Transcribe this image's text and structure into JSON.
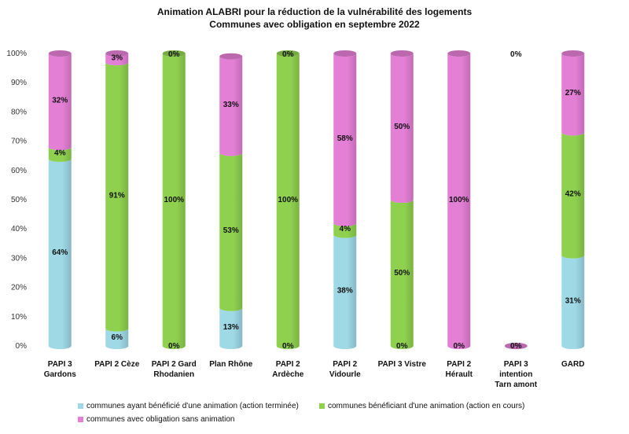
{
  "chart_data": {
    "type": "bar",
    "stacked": true,
    "percent": true,
    "title": "Animation ALABRI pour la réduction de la vulnérabilité des logements",
    "subtitle": "Communes avec obligation en septembre 2022",
    "categories": [
      [
        "PAPI 3",
        "Gardons"
      ],
      [
        "PAPI 2 Cèze"
      ],
      [
        "PAPI 2 Gard",
        "Rhodanien"
      ],
      [
        "Plan Rhône"
      ],
      [
        "PAPI 2",
        "Ardèche"
      ],
      [
        "PAPI 2",
        "Vidourle"
      ],
      [
        "PAPI 3 Vistre"
      ],
      [
        "PAPI 2",
        "Hérault"
      ],
      [
        "PAPI 3",
        "intention",
        "Tarn amont"
      ],
      [
        "GARD"
      ]
    ],
    "yticks": [
      "0%",
      "10%",
      "20%",
      "30%",
      "40%",
      "50%",
      "60%",
      "70%",
      "80%",
      "90%",
      "100%"
    ],
    "ylim": [
      0,
      100
    ],
    "series": [
      {
        "name": "communes ayant bénéficié d'une animation (action terminée)",
        "color": "#9fd9e6",
        "values": [
          64,
          6,
          0,
          13,
          0,
          38,
          0,
          0,
          0,
          31
        ],
        "labels": [
          "64%",
          "6%",
          "0%",
          "13%",
          "0%",
          "38%",
          "0%",
          "0%",
          "0%",
          "31%"
        ]
      },
      {
        "name": "communes bénéficiant d'une animation (action en cours)",
        "color": "#8fd14f",
        "values": [
          4,
          91,
          100,
          53,
          100,
          4,
          50,
          0,
          0,
          42
        ],
        "labels": [
          "4%",
          "91%",
          "100%",
          "53%",
          "100%",
          "4%",
          "50%",
          "",
          "",
          "42%"
        ]
      },
      {
        "name": "communes  avec obligation sans animation",
        "color": "#e47fd6",
        "values": [
          32,
          3,
          0,
          33,
          0,
          58,
          50,
          100,
          0,
          27
        ],
        "labels": [
          "32%",
          "3%",
          "0%",
          "33%",
          "0%",
          "58%",
          "50%",
          "100%",
          "0%",
          "27%"
        ]
      }
    ],
    "legend": "bottom"
  }
}
